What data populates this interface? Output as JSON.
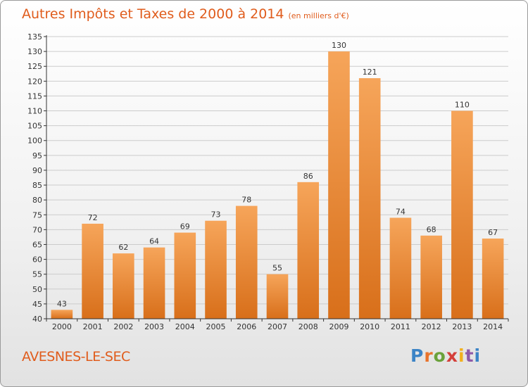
{
  "title": "Autres Impôts et Taxes de 2000 à 2014",
  "subtitle": "(en milliers d'€)",
  "commune": "AVESNES-LE-SEC",
  "logo": {
    "letters": [
      "P",
      "r",
      "o",
      "x",
      "i",
      "t",
      "i"
    ]
  },
  "colors": {
    "accent": "#e05c1c",
    "bar_top": "#f6a55a",
    "bar_bottom": "#d86f1a",
    "grid": "#cccccc",
    "axis": "#333333"
  },
  "chart_data": {
    "type": "bar",
    "categories": [
      "2000",
      "2001",
      "2002",
      "2003",
      "2004",
      "2005",
      "2006",
      "2007",
      "2008",
      "2009",
      "2010",
      "2011",
      "2012",
      "2013",
      "2014"
    ],
    "values": [
      43,
      72,
      62,
      64,
      69,
      73,
      78,
      55,
      86,
      130,
      121,
      74,
      68,
      110,
      67
    ],
    "title": "Autres Impôts et Taxes de 2000 à 2014",
    "subtitle": "(en milliers d'€)",
    "xlabel": "",
    "ylabel": "",
    "ylim": [
      40,
      135
    ],
    "ytick_step": 5,
    "grid": true,
    "legend": "none"
  }
}
